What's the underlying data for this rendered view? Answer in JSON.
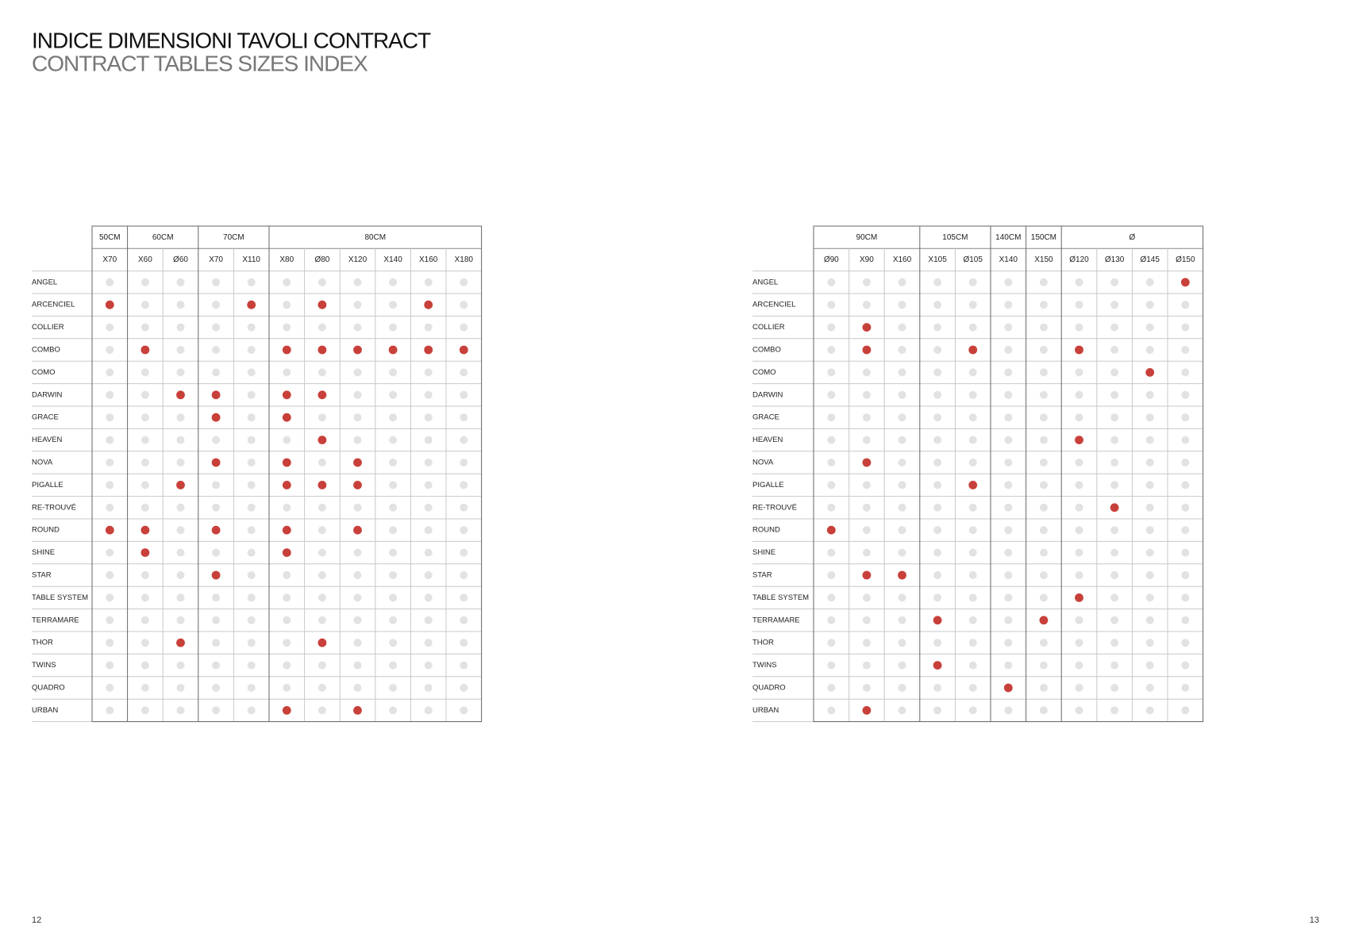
{
  "header": {
    "title": "INDICE DIMENSIONI TAVOLI CONTRACT",
    "subtitle": "CONTRACT TABLES SIZES INDEX"
  },
  "tables": [
    {
      "groups": [
        {
          "label": "50CM",
          "columns": [
            "X70"
          ]
        },
        {
          "label": "60CM",
          "columns": [
            "X60",
            "Ø60"
          ]
        },
        {
          "label": "70CM",
          "columns": [
            "X70",
            "X110"
          ]
        },
        {
          "label": "80CM",
          "columns": [
            "X80",
            "Ø80",
            "X120",
            "X140",
            "X160",
            "X180"
          ]
        }
      ],
      "rows": [
        {
          "name": "ANGEL",
          "available": [
            false,
            false,
            false,
            false,
            false,
            false,
            false,
            false,
            false,
            false,
            false
          ]
        },
        {
          "name": "ARCENCIEL",
          "available": [
            true,
            false,
            false,
            false,
            true,
            false,
            true,
            false,
            false,
            true,
            false
          ]
        },
        {
          "name": "COLLIER",
          "available": [
            false,
            false,
            false,
            false,
            false,
            false,
            false,
            false,
            false,
            false,
            false
          ]
        },
        {
          "name": "COMBO",
          "available": [
            false,
            true,
            false,
            false,
            false,
            true,
            true,
            true,
            true,
            true,
            true
          ]
        },
        {
          "name": "COMO",
          "available": [
            false,
            false,
            false,
            false,
            false,
            false,
            false,
            false,
            false,
            false,
            false
          ]
        },
        {
          "name": "DARWIN",
          "available": [
            false,
            false,
            true,
            true,
            false,
            true,
            true,
            false,
            false,
            false,
            false
          ]
        },
        {
          "name": "GRACE",
          "available": [
            false,
            false,
            false,
            true,
            false,
            true,
            false,
            false,
            false,
            false,
            false
          ]
        },
        {
          "name": "HEAVEN",
          "available": [
            false,
            false,
            false,
            false,
            false,
            false,
            true,
            false,
            false,
            false,
            false
          ]
        },
        {
          "name": "NOVA",
          "available": [
            false,
            false,
            false,
            true,
            false,
            true,
            false,
            true,
            false,
            false,
            false
          ]
        },
        {
          "name": "PIGALLE",
          "available": [
            false,
            false,
            true,
            false,
            false,
            true,
            true,
            true,
            false,
            false,
            false
          ]
        },
        {
          "name": "RE-TROUVÉ",
          "available": [
            false,
            false,
            false,
            false,
            false,
            false,
            false,
            false,
            false,
            false,
            false
          ]
        },
        {
          "name": "ROUND",
          "available": [
            true,
            true,
            false,
            true,
            false,
            true,
            false,
            true,
            false,
            false,
            false
          ]
        },
        {
          "name": "SHINE",
          "available": [
            false,
            true,
            false,
            false,
            false,
            true,
            false,
            false,
            false,
            false,
            false
          ]
        },
        {
          "name": "STAR",
          "available": [
            false,
            false,
            false,
            true,
            false,
            false,
            false,
            false,
            false,
            false,
            false
          ]
        },
        {
          "name": "TABLE SYSTEM",
          "available": [
            false,
            false,
            false,
            false,
            false,
            false,
            false,
            false,
            false,
            false,
            false
          ]
        },
        {
          "name": "TERRAMARE",
          "available": [
            false,
            false,
            false,
            false,
            false,
            false,
            false,
            false,
            false,
            false,
            false
          ]
        },
        {
          "name": "THOR",
          "available": [
            false,
            false,
            true,
            false,
            false,
            false,
            true,
            false,
            false,
            false,
            false
          ]
        },
        {
          "name": "TWINS",
          "available": [
            false,
            false,
            false,
            false,
            false,
            false,
            false,
            false,
            false,
            false,
            false
          ]
        },
        {
          "name": "QUADRO",
          "available": [
            false,
            false,
            false,
            false,
            false,
            false,
            false,
            false,
            false,
            false,
            false
          ]
        },
        {
          "name": "URBAN",
          "available": [
            false,
            false,
            false,
            false,
            false,
            true,
            false,
            true,
            false,
            false,
            false
          ]
        }
      ]
    },
    {
      "groups": [
        {
          "label": "90CM",
          "columns": [
            "Ø90",
            "X90",
            "X160"
          ]
        },
        {
          "label": "105CM",
          "columns": [
            "X105",
            "Ø105"
          ]
        },
        {
          "label": "140CM",
          "columns": [
            "X140"
          ]
        },
        {
          "label": "150CM",
          "columns": [
            "X150"
          ]
        },
        {
          "label": "Ø",
          "columns": [
            "Ø120",
            "Ø130",
            "Ø145",
            "Ø150"
          ]
        }
      ],
      "rows": [
        {
          "name": "ANGEL",
          "available": [
            false,
            false,
            false,
            false,
            false,
            false,
            false,
            false,
            false,
            false,
            true
          ]
        },
        {
          "name": "ARCENCIEL",
          "available": [
            false,
            false,
            false,
            false,
            false,
            false,
            false,
            false,
            false,
            false,
            false
          ]
        },
        {
          "name": "COLLIER",
          "available": [
            false,
            true,
            false,
            false,
            false,
            false,
            false,
            false,
            false,
            false,
            false
          ]
        },
        {
          "name": "COMBO",
          "available": [
            false,
            true,
            false,
            false,
            true,
            false,
            false,
            true,
            false,
            false,
            false
          ]
        },
        {
          "name": "COMO",
          "available": [
            false,
            false,
            false,
            false,
            false,
            false,
            false,
            false,
            false,
            true,
            false
          ]
        },
        {
          "name": "DARWIN",
          "available": [
            false,
            false,
            false,
            false,
            false,
            false,
            false,
            false,
            false,
            false,
            false
          ]
        },
        {
          "name": "GRACE",
          "available": [
            false,
            false,
            false,
            false,
            false,
            false,
            false,
            false,
            false,
            false,
            false
          ]
        },
        {
          "name": "HEAVEN",
          "available": [
            false,
            false,
            false,
            false,
            false,
            false,
            false,
            true,
            false,
            false,
            false
          ]
        },
        {
          "name": "NOVA",
          "available": [
            false,
            true,
            false,
            false,
            false,
            false,
            false,
            false,
            false,
            false,
            false
          ]
        },
        {
          "name": "PIGALLE",
          "available": [
            false,
            false,
            false,
            false,
            true,
            false,
            false,
            false,
            false,
            false,
            false
          ]
        },
        {
          "name": "RE-TROUVÉ",
          "available": [
            false,
            false,
            false,
            false,
            false,
            false,
            false,
            false,
            true,
            false,
            false
          ]
        },
        {
          "name": "ROUND",
          "available": [
            true,
            false,
            false,
            false,
            false,
            false,
            false,
            false,
            false,
            false,
            false
          ]
        },
        {
          "name": "SHINE",
          "available": [
            false,
            false,
            false,
            false,
            false,
            false,
            false,
            false,
            false,
            false,
            false
          ]
        },
        {
          "name": "STAR",
          "available": [
            false,
            true,
            true,
            false,
            false,
            false,
            false,
            false,
            false,
            false,
            false
          ]
        },
        {
          "name": "TABLE SYSTEM",
          "available": [
            false,
            false,
            false,
            false,
            false,
            false,
            false,
            true,
            false,
            false,
            false
          ]
        },
        {
          "name": "TERRAMARE",
          "available": [
            false,
            false,
            false,
            true,
            false,
            false,
            true,
            false,
            false,
            false,
            false
          ]
        },
        {
          "name": "THOR",
          "available": [
            false,
            false,
            false,
            false,
            false,
            false,
            false,
            false,
            false,
            false,
            false
          ]
        },
        {
          "name": "TWINS",
          "available": [
            false,
            false,
            false,
            true,
            false,
            false,
            false,
            false,
            false,
            false,
            false
          ]
        },
        {
          "name": "QUADRO",
          "available": [
            false,
            false,
            false,
            false,
            false,
            true,
            false,
            false,
            false,
            false,
            false
          ]
        },
        {
          "name": "URBAN",
          "available": [
            false,
            true,
            false,
            false,
            false,
            false,
            false,
            false,
            false,
            false,
            false
          ]
        }
      ]
    }
  ],
  "footer": {
    "left_page": "12",
    "right_page": "13"
  }
}
